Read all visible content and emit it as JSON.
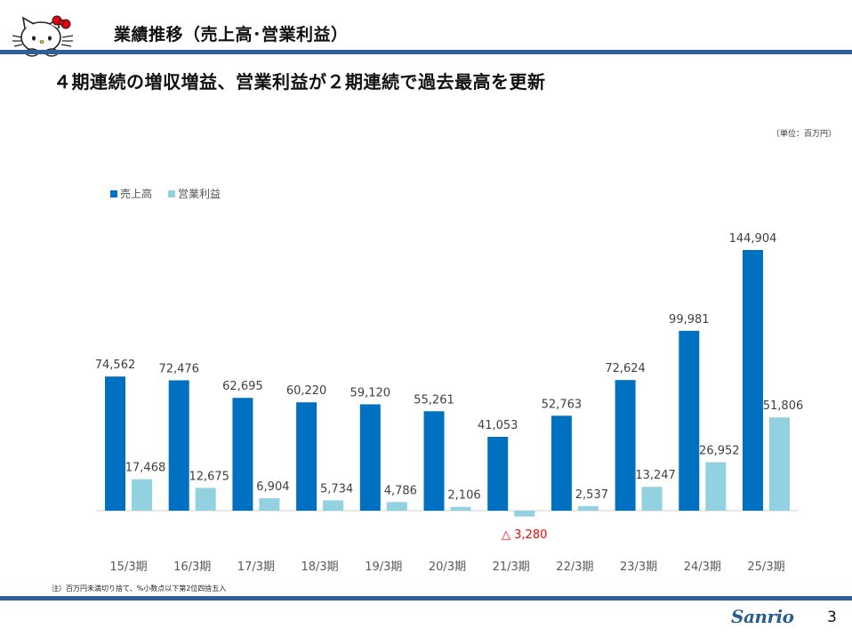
{
  "header": {
    "title": "業績推移（売上高･営業利益）",
    "subtitle": "４期連続の増収増益、営業利益が２期連続で過去最高を更新"
  },
  "unit_label": "〔単位：百万円〕",
  "footer": {
    "note": "注）百万円未満切り捨て、%小数点以下第2位四捨五入",
    "brand": "Sanrio",
    "page_number": "3"
  },
  "colors": {
    "sales": "#0070c0",
    "operating_profit": "#92d1e0",
    "negative_label": "#ff0000",
    "rule": "#2e5f9a"
  },
  "chart_data": {
    "type": "bar",
    "title": "",
    "xlabel": "",
    "ylabel": "",
    "ylim": [
      -5000,
      150000
    ],
    "grid": false,
    "legend_position": "top-left",
    "categories": [
      "15/3期",
      "16/3期",
      "17/3期",
      "18/3期",
      "19/3期",
      "20/3期",
      "21/3期",
      "22/3期",
      "23/3期",
      "24/3期",
      "25/3期"
    ],
    "series": [
      {
        "name": "売上高",
        "values": [
          74562,
          72476,
          62695,
          60220,
          59120,
          55261,
          41053,
          52763,
          72624,
          99981,
          144904
        ],
        "labels": [
          "74,562",
          "72,476",
          "62,695",
          "60,220",
          "59,120",
          "55,261",
          "41,053",
          "52,763",
          "72,624",
          "99,981",
          "144,904"
        ]
      },
      {
        "name": "営業利益",
        "values": [
          17468,
          12675,
          6904,
          5734,
          4786,
          2106,
          -3280,
          2537,
          13247,
          26952,
          51806
        ],
        "labels": [
          "17,468",
          "12,675",
          "6,904",
          "5,734",
          "4,786",
          "2,106",
          "△ 3,280",
          "2,537",
          "13,247",
          "26,952",
          "51,806"
        ]
      }
    ]
  }
}
